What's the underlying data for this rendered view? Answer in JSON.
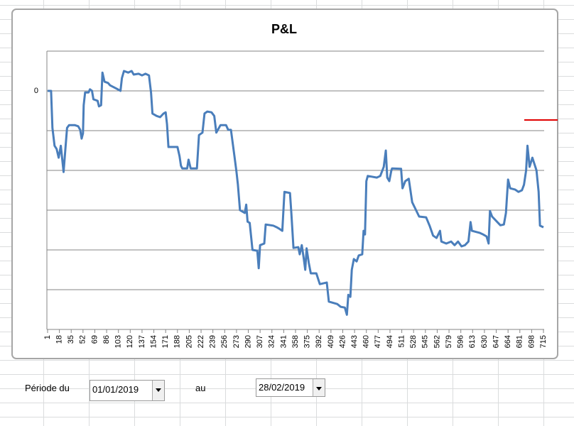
{
  "chart_data": {
    "type": "line",
    "title": "P&L",
    "color": "#4a7ebb",
    "xlim": [
      0,
      716
    ],
    "ylim": [
      -6,
      1
    ],
    "xticks": [
      1,
      18,
      35,
      52,
      69,
      86,
      103,
      120,
      137,
      154,
      171,
      188,
      205,
      222,
      239,
      256,
      273,
      290,
      307,
      324,
      341,
      358,
      375,
      392,
      409,
      426,
      443,
      460,
      477,
      494,
      511,
      528,
      545,
      562,
      579,
      596,
      613,
      630,
      647,
      664,
      681,
      698,
      715
    ],
    "yticks": [
      0
    ],
    "ygrid": [
      1,
      0,
      -1,
      -2,
      -3,
      -4,
      -5,
      -6
    ],
    "x": [
      1,
      6,
      8,
      11,
      14,
      17,
      20,
      24,
      27,
      29,
      32,
      40,
      45,
      48,
      50,
      52,
      53,
      55,
      60,
      62,
      65,
      67,
      73,
      75,
      78,
      80,
      83,
      88,
      91,
      101,
      106,
      108,
      111,
      117,
      122,
      125,
      132,
      137,
      142,
      147,
      150,
      152,
      158,
      163,
      168,
      171,
      173,
      175,
      188,
      191,
      193,
      195,
      202,
      204,
      207,
      216,
      219,
      224,
      227,
      231,
      237,
      241,
      244,
      250,
      258,
      261,
      265,
      270,
      273,
      275,
      278,
      285,
      287,
      289,
      292,
      296,
      303,
      305,
      307,
      313,
      315,
      326,
      331,
      334,
      339,
      342,
      350,
      352,
      355,
      362,
      364,
      367,
      370,
      372,
      374,
      377,
      380,
      388,
      393,
      403,
      406,
      418,
      423,
      429,
      432,
      434,
      437,
      439,
      442,
      446,
      449,
      454,
      456,
      458,
      460,
      462,
      475,
      480,
      485,
      488,
      490,
      493,
      496,
      497,
      510,
      512,
      516,
      521,
      526,
      531,
      536,
      546,
      551,
      556,
      561,
      566,
      568,
      575,
      582,
      587,
      592,
      597,
      602,
      607,
      610,
      612,
      623,
      628,
      633,
      636,
      638,
      641,
      648,
      653,
      658,
      661,
      664,
      667,
      674,
      679,
      684,
      687,
      690,
      692,
      695,
      699,
      705,
      708,
      710,
      715
    ],
    "values": [
      0,
      0,
      -0.93,
      -1.38,
      -1.46,
      -1.68,
      -1.38,
      -2.04,
      -1.38,
      -0.93,
      -0.86,
      -0.86,
      -0.89,
      -0.98,
      -1.2,
      -1.07,
      -0.36,
      -0.04,
      -0.04,
      0.04,
      0,
      -0.21,
      -0.25,
      -0.39,
      -0.36,
      0.46,
      0.23,
      0.2,
      0.14,
      0.05,
      0,
      0.32,
      0.5,
      0.46,
      0.5,
      0.41,
      0.43,
      0.39,
      0.43,
      0.39,
      -0.04,
      -0.57,
      -0.63,
      -0.66,
      -0.57,
      -0.54,
      -0.84,
      -1.41,
      -1.41,
      -1.64,
      -1.88,
      -1.95,
      -1.95,
      -1.73,
      -1.95,
      -1.95,
      -1.11,
      -1.05,
      -0.57,
      -0.52,
      -0.54,
      -0.63,
      -1.05,
      -0.86,
      -0.86,
      -0.98,
      -0.98,
      -1.64,
      -2.04,
      -2.36,
      -3,
      -3.07,
      -2.86,
      -3.29,
      -3.32,
      -4,
      -4.02,
      -4.46,
      -3.88,
      -3.84,
      -3.36,
      -3.39,
      -3.43,
      -3.46,
      -3.52,
      -2.54,
      -2.57,
      -3.07,
      -3.95,
      -3.93,
      -4.11,
      -3.88,
      -4.23,
      -4.5,
      -3.96,
      -4.32,
      -4.59,
      -4.59,
      -4.86,
      -4.82,
      -5.3,
      -5.36,
      -5.43,
      -5.45,
      -5.63,
      -5.13,
      -5.18,
      -4.5,
      -4.23,
      -4.29,
      -4.14,
      -4.11,
      -3.52,
      -3.61,
      -2.27,
      -2.14,
      -2.18,
      -2.14,
      -1.91,
      -1.5,
      -2.18,
      -2.27,
      -2,
      -1.95,
      -1.96,
      -2.45,
      -2.27,
      -2.21,
      -2.8,
      -2.98,
      -3.16,
      -3.18,
      -3.39,
      -3.64,
      -3.7,
      -3.52,
      -3.79,
      -3.84,
      -3.79,
      -3.88,
      -3.79,
      -3.91,
      -3.88,
      -3.79,
      -3.3,
      -3.52,
      -3.57,
      -3.61,
      -3.66,
      -3.84,
      -3.02,
      -3.16,
      -3.29,
      -3.38,
      -3.36,
      -3.07,
      -2.23,
      -2.45,
      -2.48,
      -2.54,
      -2.5,
      -2.36,
      -2,
      -1.38,
      -1.91,
      -1.68,
      -2,
      -2.54,
      -3.39,
      -3.43
    ]
  },
  "form": {
    "label_from": "Période du",
    "date_from": "01/01/2019",
    "label_to": "au",
    "date_to": "28/02/2019"
  }
}
